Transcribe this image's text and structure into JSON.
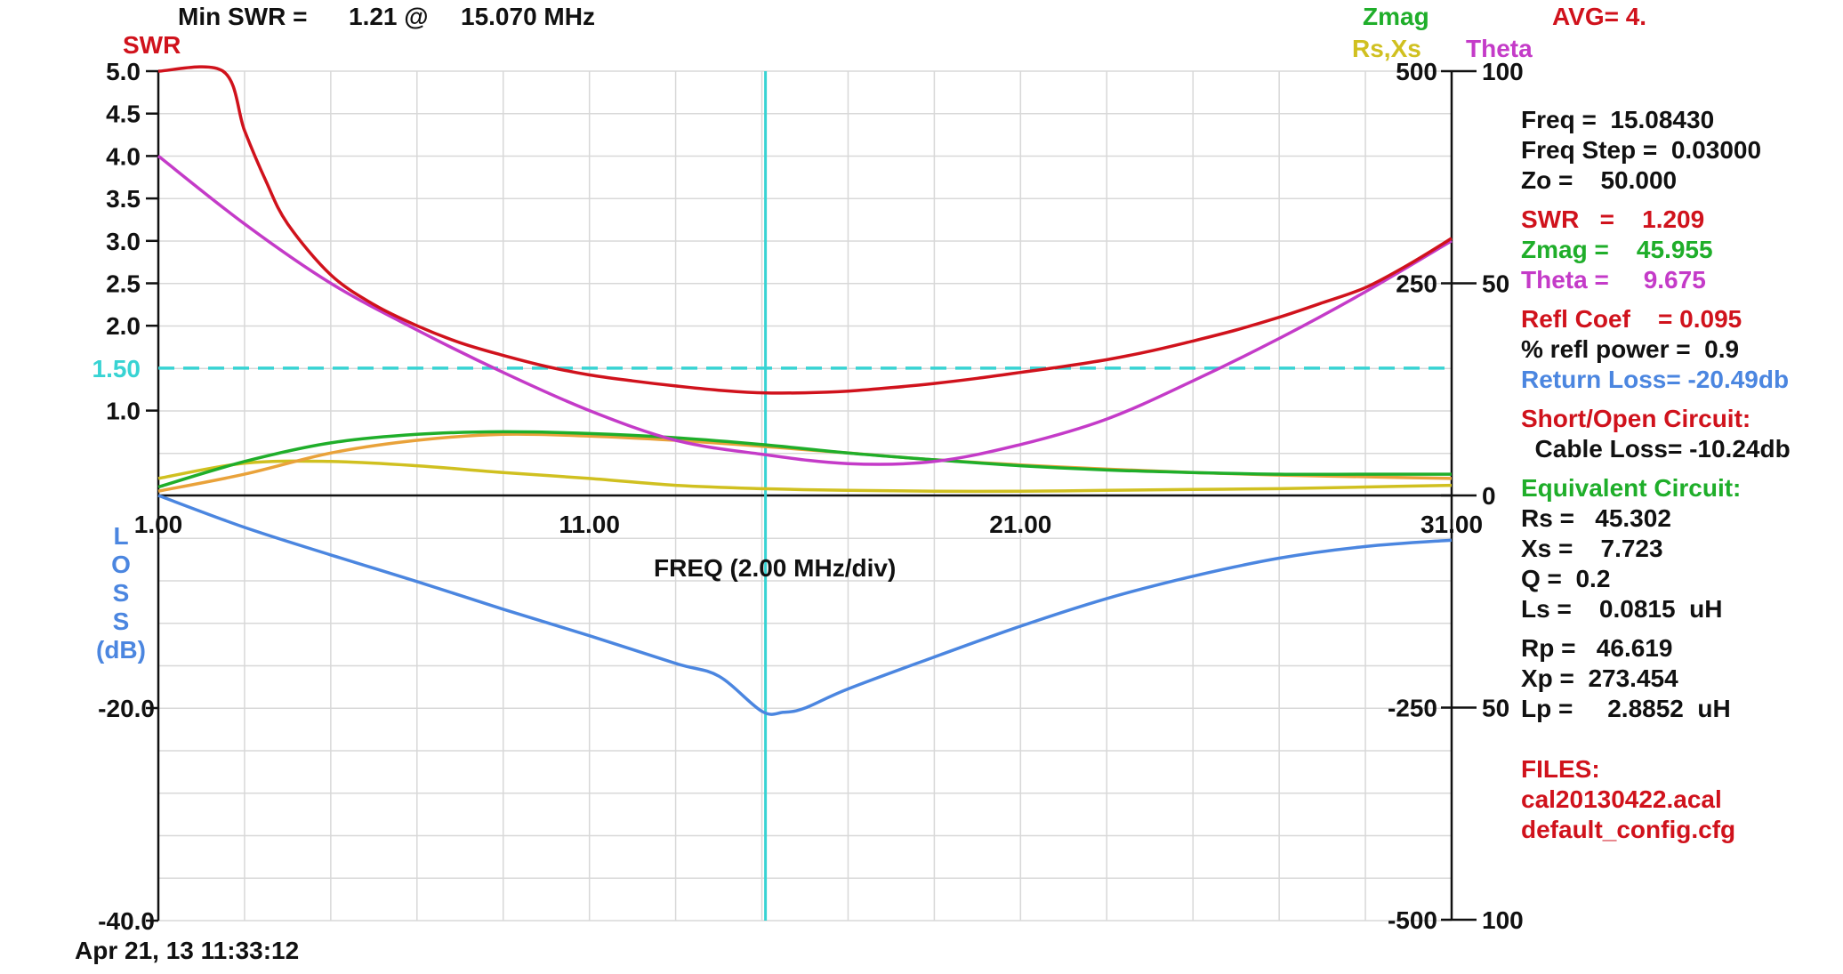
{
  "header": {
    "min_swr_label": "Min SWR =",
    "min_swr_value": "1.21 @",
    "min_swr_freq": "15.070 MHz",
    "zmag_legend": "Zmag",
    "avg_label": "AVG= 4.",
    "rsxs_legend": "Rs,Xs",
    "theta_legend": "Theta",
    "swr_axis_title": "SWR"
  },
  "footer": {
    "timestamp": "Apr 21, 13  11:33:12"
  },
  "colors": {
    "swr": "#d0121c",
    "zmag": "#1fae2a",
    "rs": "#e9a23a",
    "xs": "#d0c020",
    "theta": "#c43bc8",
    "loss": "#4b86e0",
    "cursor": "#38d3d3",
    "grid": "#d8d8d8"
  },
  "readout": {
    "freq": "Freq =  15.08430",
    "freq_step": "Freq Step =  0.03000",
    "zo": "Zo =    50.000",
    "swr": "SWR   =    1.209",
    "zmag": "Zmag =    45.955",
    "theta": "Theta =     9.675",
    "refl_coef": "Refl Coef    = 0.095",
    "refl_power": "% refl power =  0.9",
    "return_loss": "Return Loss= -20.49db",
    "short_open": "Short/Open Circuit:",
    "cable_loss": "  Cable Loss= -10.24db",
    "equiv": "Equivalent Circuit:",
    "rs": "Rs =   45.302",
    "xs": "Xs =    7.723",
    "q": "Q =  0.2",
    "ls": "Ls =    0.0815  uH",
    "rp": "Rp =   46.619",
    "xp": "Xp =  273.454",
    "lp": "Lp =     2.8852  uH",
    "files": "FILES:",
    "file1": "cal20130422.acal",
    "file2": "default_config.cfg"
  },
  "chart_data": {
    "type": "line",
    "xlabel": "FREQ (2.00 MHz/div)",
    "xlim": [
      1,
      31
    ],
    "x_ticks": [
      "1.00",
      "11.00",
      "21.00",
      "31.00"
    ],
    "cursor_freq": 15.0843,
    "swr_reference": 1.5,
    "swr_reference_label": "1.50",
    "swr_axis": {
      "ylim": [
        0,
        5
      ],
      "tick_labels": [
        "5.0",
        "4.5",
        "4.0",
        "3.5",
        "3.0",
        "2.5",
        "2.0",
        "1.0"
      ],
      "tick_values": [
        5,
        4.5,
        4,
        3.5,
        3,
        2.5,
        2,
        1
      ]
    },
    "loss_axis": {
      "title_letters": [
        "L",
        "O",
        "S",
        "S"
      ],
      "unit": "(dB)",
      "ylim": [
        -40,
        0
      ],
      "tick_labels": [
        "-20.0",
        "-40.0"
      ],
      "tick_values": [
        -20,
        -40
      ]
    },
    "zmag_axis": {
      "ylim": [
        -500,
        500
      ],
      "tick_labels": [
        "500",
        "250",
        "-250",
        "-500"
      ],
      "tick_values": [
        500,
        250,
        -250,
        -500
      ]
    },
    "theta_axis": {
      "ylim": [
        -100,
        100
      ],
      "tick_labels": [
        "100",
        "50",
        "0",
        "50",
        "100"
      ],
      "tick_values": [
        100,
        50,
        0,
        -50,
        -100
      ]
    },
    "series": [
      {
        "name": "SWR",
        "axis": "swr",
        "x": [
          1,
          2.5,
          3,
          3.5,
          4,
          5,
          6,
          7,
          8,
          9,
          10,
          11,
          12,
          13,
          14,
          15,
          16,
          17,
          18,
          19,
          20,
          21,
          22,
          23,
          24,
          25,
          26,
          27,
          28,
          29,
          30,
          31
        ],
        "y": [
          5,
          5,
          4.3,
          3.7,
          3.2,
          2.6,
          2.25,
          2,
          1.8,
          1.65,
          1.52,
          1.42,
          1.35,
          1.29,
          1.24,
          1.21,
          1.21,
          1.23,
          1.27,
          1.32,
          1.38,
          1.45,
          1.52,
          1.6,
          1.7,
          1.82,
          1.95,
          2.1,
          2.27,
          2.45,
          2.72,
          3.03
        ]
      },
      {
        "name": "Zmag",
        "axis": "zmag",
        "x": [
          1,
          3,
          5,
          7,
          9,
          11,
          13,
          15,
          17,
          19,
          21,
          23,
          25,
          27,
          29,
          31
        ],
        "y": [
          10,
          40,
          62,
          72,
          75,
          73,
          68,
          60,
          50,
          42,
          35,
          30,
          27,
          25,
          25,
          25
        ]
      },
      {
        "name": "Rs",
        "axis": "zmag",
        "x": [
          1,
          3,
          5,
          7,
          9,
          11,
          13,
          15,
          17,
          19,
          21,
          23,
          25,
          27,
          29,
          31
        ],
        "y": [
          5,
          25,
          50,
          65,
          72,
          70,
          65,
          58,
          50,
          42,
          36,
          31,
          27,
          24,
          22,
          20
        ]
      },
      {
        "name": "Xs",
        "axis": "zmag",
        "x": [
          1,
          3,
          5,
          7,
          9,
          11,
          13,
          15,
          17,
          19,
          21,
          23,
          25,
          27,
          29,
          31
        ],
        "y": [
          20,
          38,
          40,
          35,
          27,
          20,
          12,
          8,
          6,
          5,
          5,
          6,
          7,
          8,
          10,
          12
        ]
      },
      {
        "name": "Theta",
        "axis": "theta",
        "x": [
          1,
          3,
          5,
          7,
          9,
          11,
          13,
          15,
          17,
          19,
          21,
          23,
          25,
          27,
          29,
          31
        ],
        "y": [
          80,
          64,
          50,
          39,
          29,
          20,
          13,
          9.7,
          7.5,
          8,
          12,
          18,
          27,
          37,
          48,
          60
        ]
      },
      {
        "name": "Return Loss",
        "axis": "loss",
        "x": [
          1,
          3,
          5,
          7,
          9,
          11,
          13,
          14,
          15,
          15.5,
          16,
          17,
          19,
          21,
          23,
          25,
          27,
          29,
          31
        ],
        "y": [
          0,
          -3,
          -5.6,
          -8.1,
          -10.7,
          -13.2,
          -15.8,
          -17,
          -20.3,
          -20.4,
          -20,
          -18.2,
          -15.2,
          -12.3,
          -9.7,
          -7.6,
          -5.9,
          -4.8,
          -4.2
        ]
      }
    ]
  }
}
